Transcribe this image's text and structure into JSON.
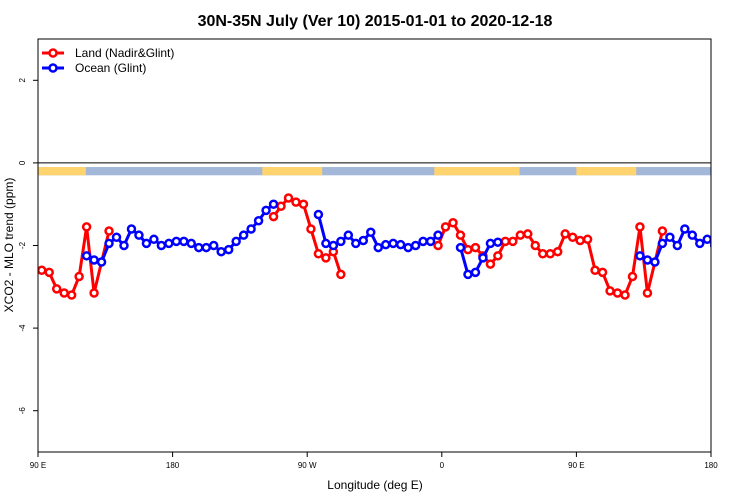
{
  "chart_data": {
    "type": "line",
    "title": "30N-35N July (Ver 10)   2015-01-01 to 2020-12-18",
    "xlabel": "Longitude (deg E)",
    "ylabel": "XCO2 - MLO trend (ppm)",
    "xlim": [
      90,
      540
    ],
    "ylim": [
      -7,
      3
    ],
    "x_tick_values": [
      90,
      180,
      270,
      360,
      450,
      540
    ],
    "x_tick_labels": [
      "90 E",
      "180",
      "90 W",
      "0",
      "90 E",
      "180"
    ],
    "y_ticks": [
      -6,
      -4,
      -2,
      0,
      2
    ],
    "grid": false,
    "legend_position": "top-left",
    "zero_line": 0,
    "land_mask_band": {
      "y_top": -0.1,
      "y_bottom": -0.3,
      "land_color": "#FFD36E",
      "ocean_color": "#A3B8D8",
      "land_ranges": [
        [
          90,
          122
        ],
        [
          240,
          280
        ],
        [
          355,
          412
        ],
        [
          450,
          490
        ]
      ]
    },
    "series": [
      {
        "name": "Land (Nadir&Glint)",
        "color": "#FF0000",
        "points": [
          [
            92.5,
            -2.6
          ],
          [
            97.5,
            -2.65
          ],
          [
            102.5,
            -3.05
          ],
          [
            107.5,
            -3.15
          ],
          [
            112.5,
            -3.2
          ],
          [
            117.5,
            -2.75
          ],
          [
            122.5,
            -1.55
          ],
          [
            127.5,
            -3.15
          ],
          [
            137.5,
            -1.65
          ],
          null,
          [
            247.5,
            -1.3
          ],
          [
            252.5,
            -1.05
          ],
          [
            257.5,
            -0.85
          ],
          [
            262.5,
            -0.95
          ],
          [
            267.5,
            -1.0
          ],
          [
            272.5,
            -1.6
          ],
          [
            277.5,
            -2.2
          ],
          [
            282.5,
            -2.3
          ],
          [
            287.5,
            -2.15
          ],
          [
            292.5,
            -2.7
          ],
          null,
          [
            357.5,
            -2.0
          ],
          [
            362.5,
            -1.55
          ],
          [
            367.5,
            -1.45
          ],
          [
            372.5,
            -1.75
          ],
          [
            377.5,
            -2.1
          ],
          [
            382.5,
            -2.05
          ],
          [
            387.5,
            -2.25
          ],
          [
            392.5,
            -2.45
          ],
          [
            397.5,
            -2.25
          ],
          [
            402.5,
            -1.9
          ],
          [
            407.5,
            -1.9
          ],
          [
            412.5,
            -1.75
          ],
          [
            417.5,
            -1.72
          ],
          [
            422.5,
            -2.0
          ],
          [
            427.5,
            -2.2
          ],
          [
            432.5,
            -2.2
          ],
          [
            437.5,
            -2.15
          ],
          [
            442.5,
            -1.72
          ],
          [
            447.5,
            -1.8
          ],
          [
            452.5,
            -1.88
          ],
          [
            457.5,
            -1.85
          ],
          [
            462.5,
            -2.6
          ],
          [
            467.5,
            -2.65
          ],
          [
            472.5,
            -3.1
          ],
          [
            477.5,
            -3.15
          ],
          [
            482.5,
            -3.2
          ],
          [
            487.5,
            -2.75
          ],
          [
            492.5,
            -1.55
          ],
          [
            497.5,
            -3.15
          ],
          [
            507.5,
            -1.65
          ]
        ]
      },
      {
        "name": "Ocean (Glint)",
        "color": "#0000FF",
        "points": [
          [
            122.5,
            -2.25
          ],
          [
            127.5,
            -2.35
          ],
          [
            132.5,
            -2.4
          ],
          [
            137.5,
            -1.95
          ],
          [
            142.5,
            -1.8
          ],
          [
            147.5,
            -2.0
          ],
          [
            152.5,
            -1.6
          ],
          [
            157.5,
            -1.75
          ],
          [
            162.5,
            -1.95
          ],
          [
            167.5,
            -1.85
          ],
          [
            172.5,
            -2.0
          ],
          [
            177.5,
            -1.95
          ],
          [
            182.5,
            -1.9
          ],
          [
            187.5,
            -1.9
          ],
          [
            192.5,
            -1.95
          ],
          [
            197.5,
            -2.05
          ],
          [
            202.5,
            -2.05
          ],
          [
            207.5,
            -2.0
          ],
          [
            212.5,
            -2.15
          ],
          [
            217.5,
            -2.1
          ],
          [
            222.5,
            -1.9
          ],
          [
            227.5,
            -1.75
          ],
          [
            232.5,
            -1.6
          ],
          [
            237.5,
            -1.4
          ],
          [
            242.5,
            -1.15
          ],
          [
            247.5,
            -1.0
          ],
          null,
          [
            277.5,
            -1.25
          ],
          [
            282.5,
            -1.95
          ],
          [
            287.5,
            -2.0
          ],
          [
            292.5,
            -1.9
          ],
          [
            297.5,
            -1.75
          ],
          [
            302.5,
            -1.95
          ],
          [
            307.5,
            -1.88
          ],
          [
            312.5,
            -1.68
          ],
          [
            317.5,
            -2.05
          ],
          [
            322.5,
            -1.98
          ],
          [
            327.5,
            -1.95
          ],
          [
            332.5,
            -1.98
          ],
          [
            337.5,
            -2.05
          ],
          [
            342.5,
            -2.0
          ],
          [
            347.5,
            -1.9
          ],
          [
            352.5,
            -1.9
          ],
          [
            357.5,
            -1.75
          ],
          null,
          [
            372.5,
            -2.05
          ],
          [
            377.5,
            -2.7
          ],
          [
            382.5,
            -2.65
          ],
          [
            387.5,
            -2.3
          ],
          [
            392.5,
            -1.95
          ],
          [
            397.5,
            -1.92
          ],
          null,
          [
            492.5,
            -2.25
          ],
          [
            497.5,
            -2.35
          ],
          [
            502.5,
            -2.4
          ],
          [
            507.5,
            -1.95
          ],
          [
            512.5,
            -1.8
          ],
          [
            517.5,
            -2.0
          ],
          [
            522.5,
            -1.6
          ],
          [
            527.5,
            -1.75
          ],
          [
            532.5,
            -1.95
          ],
          [
            537.5,
            -1.85
          ],
          [
            542.5,
            -2.0
          ],
          [
            547.5,
            -1.95
          ]
        ]
      }
    ]
  }
}
